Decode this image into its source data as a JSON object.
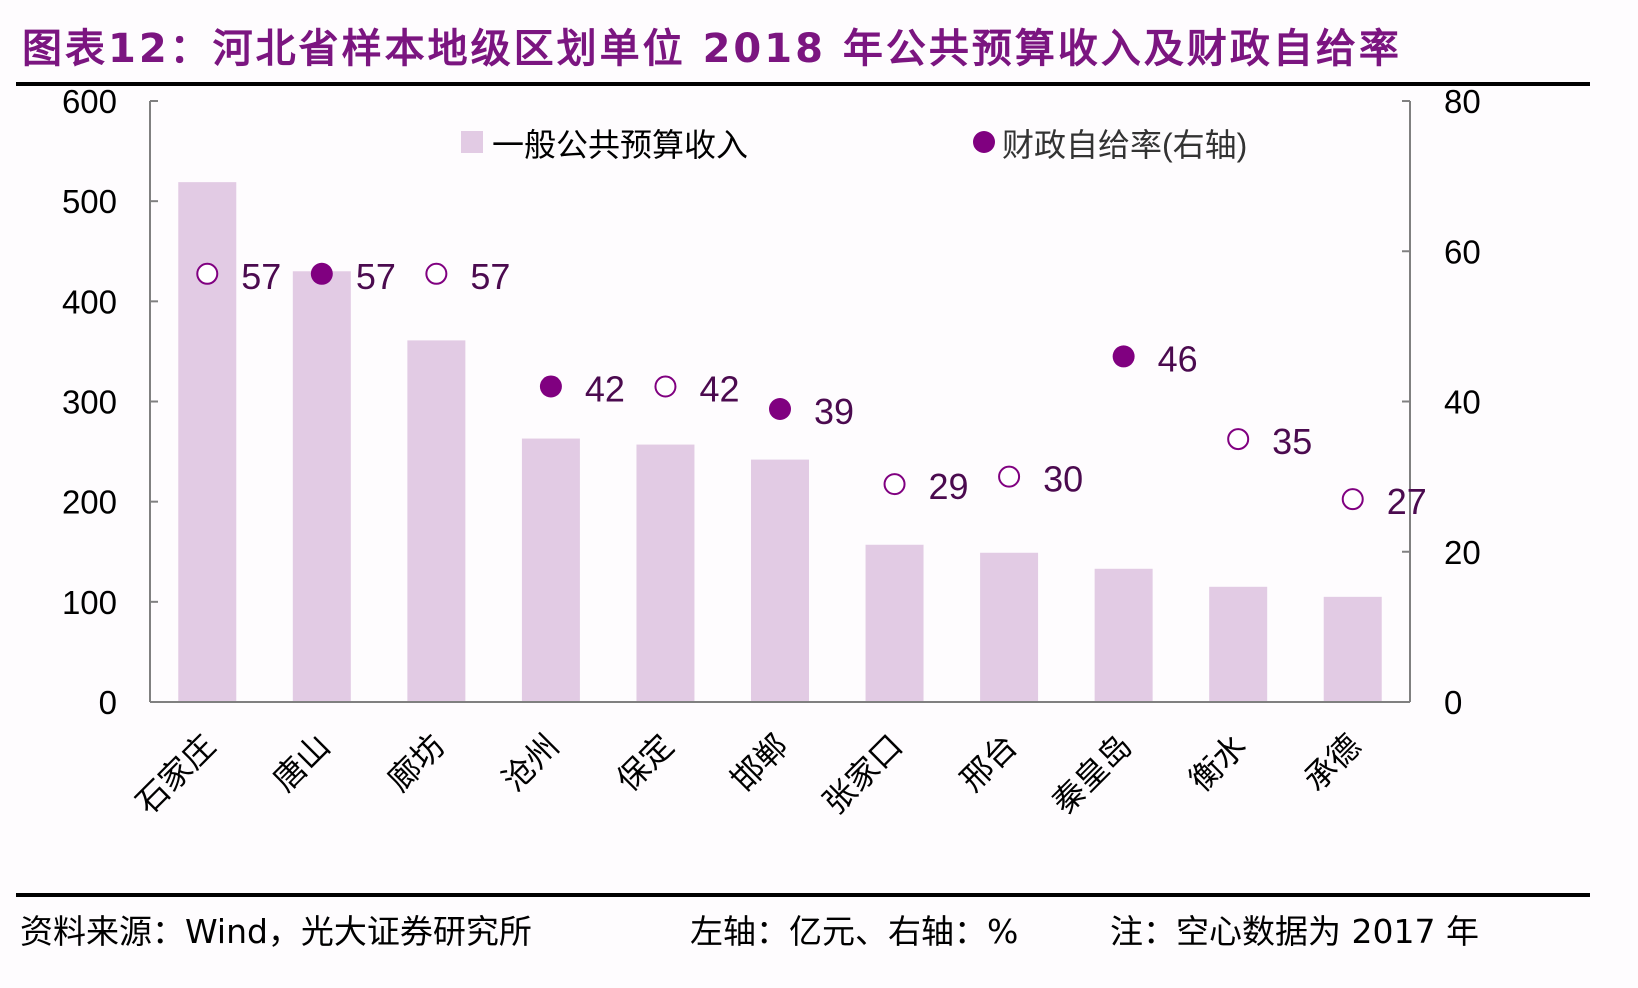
{
  "title": "图表12：河北省样本地级区划单位 2018 年公共预算收入及财政自给率",
  "footer": {
    "source": "资料来源：Wind，光大证券研究所",
    "units": "左轴：亿元、右轴：%",
    "note": "注：空心数据为 2017 年"
  },
  "colors": {
    "bar": "#e2cbe4",
    "marker": "#800080",
    "label": "#4b0a4f",
    "title": "#7b1580"
  },
  "chart_data": {
    "type": "bar",
    "title": "河北省样本地级区划单位 2018 年公共预算收入及财政自给率",
    "categories": [
      "石家庄",
      "唐山",
      "廊坊",
      "沧州",
      "保定",
      "邯郸",
      "张家口",
      "邢台",
      "秦皇岛",
      "衡水",
      "承德"
    ],
    "series": [
      {
        "name": "一般公共预算收入",
        "type": "bar",
        "axis": "left",
        "values": [
          519,
          430,
          361,
          263,
          257,
          242,
          157,
          149,
          133,
          115,
          105
        ]
      },
      {
        "name": "财政自给率(右轴)",
        "type": "scatter",
        "axis": "right",
        "values": [
          57,
          57,
          57,
          42,
          42,
          39,
          29,
          30,
          46,
          35,
          27
        ],
        "hollow": [
          true,
          false,
          true,
          false,
          true,
          false,
          true,
          true,
          false,
          true,
          true
        ],
        "data_labels": [
          "57",
          "57",
          "57",
          "42",
          "42",
          "39",
          "29",
          "30",
          "46",
          "35",
          "27"
        ]
      }
    ],
    "left_axis": {
      "min": 0,
      "max": 600,
      "ticks": [
        "0",
        "100",
        "200",
        "300",
        "400",
        "500",
        "600"
      ],
      "unit": "亿元"
    },
    "right_axis": {
      "min": 0,
      "max": 80,
      "ticks": [
        "0",
        "20",
        "40",
        "60",
        "80"
      ],
      "unit": "%"
    },
    "legend": {
      "position": "top",
      "items": [
        "一般公共预算收入",
        "财政自给率(右轴)"
      ]
    },
    "grid": false
  }
}
